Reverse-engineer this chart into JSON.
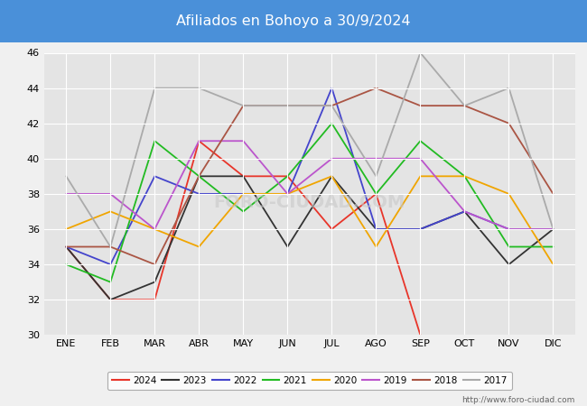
{
  "title": "Afiliados en Bohoyo a 30/9/2024",
  "title_bg_color": "#4a90d9",
  "title_text_color": "white",
  "ylim": [
    30,
    46
  ],
  "yticks": [
    30,
    32,
    34,
    36,
    38,
    40,
    42,
    44,
    46
  ],
  "months": [
    "ENE",
    "FEB",
    "MAR",
    "ABR",
    "MAY",
    "JUN",
    "JUL",
    "AGO",
    "SEP",
    "OCT",
    "NOV",
    "DIC"
  ],
  "series": {
    "2024": {
      "color": "#e8352a",
      "data": [
        35,
        32,
        32,
        41,
        39,
        39,
        36,
        38,
        30,
        null,
        null,
        null
      ]
    },
    "2023": {
      "color": "#333333",
      "data": [
        35,
        32,
        33,
        39,
        39,
        35,
        39,
        36,
        36,
        37,
        34,
        36
      ]
    },
    "2022": {
      "color": "#4444cc",
      "data": [
        35,
        34,
        39,
        38,
        38,
        38,
        44,
        36,
        36,
        37,
        36,
        36
      ]
    },
    "2021": {
      "color": "#22bb22",
      "data": [
        34,
        33,
        41,
        39,
        37,
        39,
        42,
        38,
        41,
        39,
        35,
        35
      ]
    },
    "2020": {
      "color": "#f0a500",
      "data": [
        36,
        37,
        36,
        35,
        38,
        38,
        39,
        35,
        39,
        39,
        38,
        34
      ]
    },
    "2019": {
      "color": "#bb55cc",
      "data": [
        38,
        38,
        36,
        41,
        41,
        38,
        40,
        40,
        40,
        37,
        36,
        36
      ]
    },
    "2018": {
      "color": "#aa5544",
      "data": [
        35,
        35,
        34,
        39,
        43,
        43,
        43,
        44,
        43,
        43,
        42,
        38
      ]
    },
    "2017": {
      "color": "#aaaaaa",
      "data": [
        39,
        35,
        44,
        44,
        43,
        43,
        43,
        39,
        46,
        43,
        44,
        36
      ]
    }
  },
  "legend_order": [
    "2024",
    "2023",
    "2022",
    "2021",
    "2020",
    "2019",
    "2018",
    "2017"
  ],
  "bg_color": "#f0f0f0",
  "plot_bg_color": "#e4e4e4",
  "grid_color": "#ffffff",
  "footer_text": "http://www.foro-ciudad.com"
}
